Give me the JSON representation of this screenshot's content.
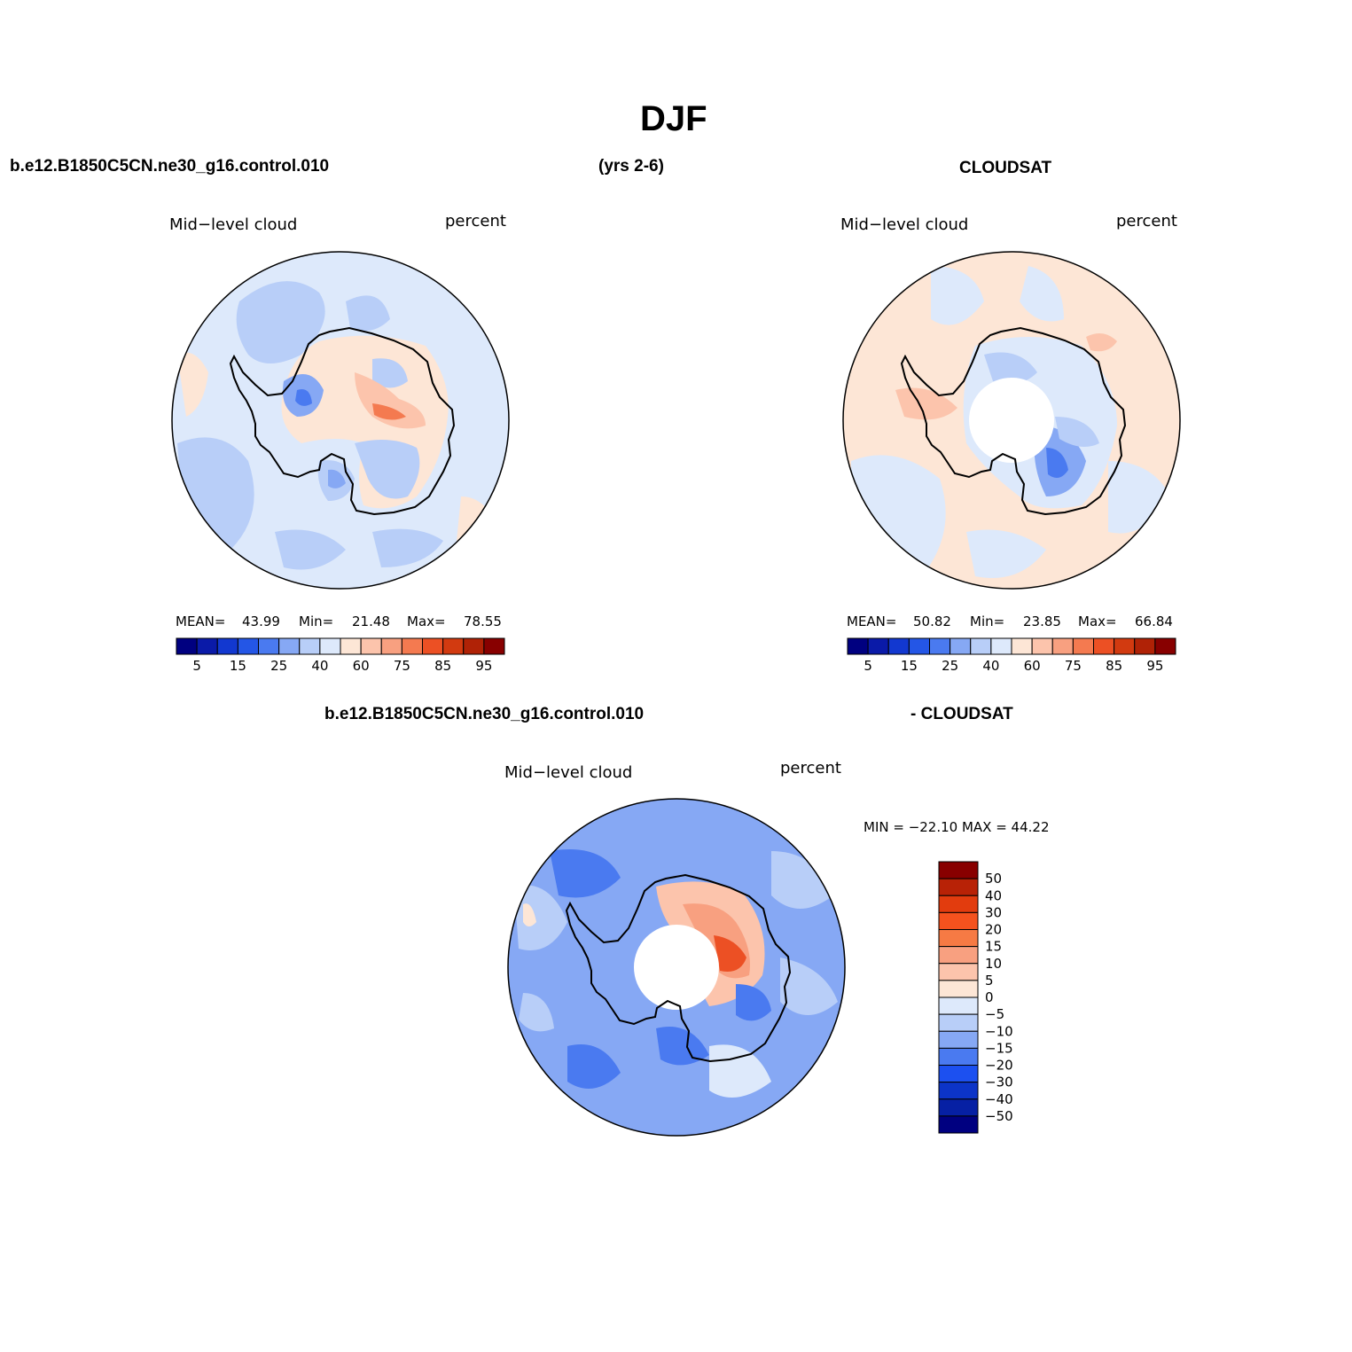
{
  "figure": {
    "title": "DJF",
    "case_name": "b.e12.B1850C5CN.ne30_g16.control.010",
    "years": "(yrs 2-6)",
    "obs_name": "CLOUDSAT",
    "diff_case_name": "b.e12.B1850C5CN.ne30_g16.control.010",
    "diff_obs_name": "- CLOUDSAT"
  },
  "panels": [
    {
      "variable": "Mid−level cloud",
      "units": "percent",
      "stats": {
        "mean_label": "MEAN=",
        "mean": "43.99",
        "min_label": "Min=",
        "min": "21.48",
        "max_label": "Max=",
        "max": "78.55"
      }
    },
    {
      "variable": "Mid−level cloud",
      "units": "percent",
      "stats": {
        "mean_label": "MEAN=",
        "mean": "50.82",
        "min_label": "Min=",
        "min": "23.85",
        "max_label": "Max=",
        "max": "66.84"
      }
    },
    {
      "variable": "Mid−level cloud",
      "units": "percent",
      "stats_text": "MIN = −22.10 MAX =  44.22"
    }
  ],
  "abs_colorbar": {
    "colors": [
      "#000080",
      "#0a1aa8",
      "#1238d0",
      "#2456e6",
      "#4a7af0",
      "#86a8f4",
      "#b8cef8",
      "#dde9fb",
      "#fde6d6",
      "#fcc4ac",
      "#f8a080",
      "#f47a50",
      "#ec5024",
      "#d23a10",
      "#b02206",
      "#880000"
    ],
    "labels": [
      "5",
      "15",
      "25",
      "40",
      "60",
      "75",
      "85",
      "95"
    ]
  },
  "diff_colorbar": {
    "colors": [
      "#880000",
      "#b82206",
      "#e23c0e",
      "#f4521e",
      "#f67a44",
      "#f8a080",
      "#fcc4ac",
      "#fde6d6",
      "#dde9fb",
      "#b8cef8",
      "#86a8f4",
      "#4a7af0",
      "#1c50f0",
      "#0c34c8",
      "#0620a4",
      "#000080"
    ],
    "labels": [
      "50",
      "40",
      "30",
      "20",
      "15",
      "10",
      "5",
      "0",
      "−5",
      "−10",
      "−15",
      "−20",
      "−30",
      "−40",
      "−50"
    ]
  }
}
